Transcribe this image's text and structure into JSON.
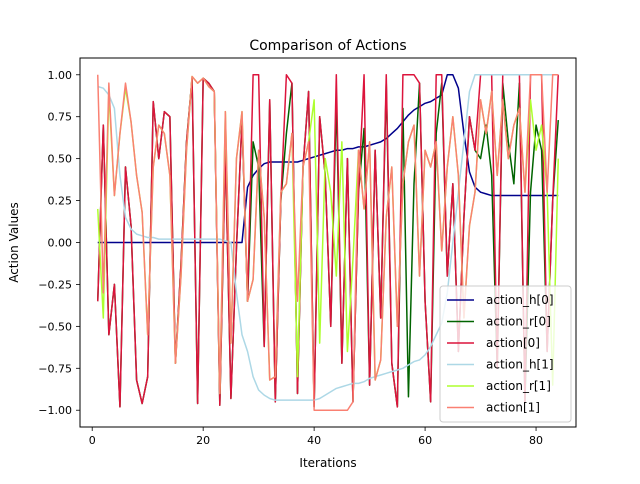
{
  "chart_data": {
    "type": "line",
    "title": "Comparison of Actions",
    "xlabel": "Iterations",
    "ylabel": "Action Values",
    "xlim": [
      -2.2,
      87.2
    ],
    "ylim": [
      -1.1,
      1.1
    ],
    "xticks": [
      0,
      20,
      40,
      60,
      80
    ],
    "xtick_labels": [
      "0",
      "20",
      "40",
      "60",
      "80"
    ],
    "yticks": [
      -1.0,
      -0.75,
      -0.5,
      -0.25,
      0.0,
      0.25,
      0.5,
      0.75,
      1.0
    ],
    "ytick_labels": [
      "−1.00",
      "−0.75",
      "−0.50",
      "−0.25",
      "0.00",
      "0.25",
      "0.50",
      "0.75",
      "1.00"
    ],
    "grid": false,
    "legend_position": "lower-right",
    "x": [
      1,
      2,
      3,
      4,
      5,
      6,
      7,
      8,
      9,
      10,
      11,
      12,
      13,
      14,
      15,
      16,
      17,
      18,
      19,
      20,
      21,
      22,
      23,
      24,
      25,
      26,
      27,
      28,
      29,
      30,
      31,
      32,
      33,
      34,
      35,
      36,
      37,
      38,
      39,
      40,
      41,
      42,
      43,
      44,
      45,
      46,
      47,
      48,
      49,
      50,
      51,
      52,
      53,
      54,
      55,
      56,
      57,
      58,
      59,
      60,
      61,
      62,
      63,
      64,
      65,
      66,
      67,
      68,
      69,
      70,
      71,
      72,
      73,
      74,
      75,
      76,
      77,
      78,
      79,
      80,
      81,
      82,
      83,
      84
    ],
    "series": [
      {
        "name": "action_h[0]",
        "color": "#00008b",
        "values": [
          0.0,
          0.0,
          0.0,
          0.0,
          0.0,
          0.0,
          0.0,
          0.0,
          0.0,
          0.0,
          0.0,
          0.0,
          0.0,
          0.0,
          0.0,
          0.0,
          0.0,
          0.0,
          0.0,
          0.0,
          0.0,
          0.0,
          0.0,
          0.0,
          0.0,
          0.0,
          0.0,
          0.33,
          0.4,
          0.44,
          0.47,
          0.48,
          0.48,
          0.48,
          0.48,
          0.48,
          0.48,
          0.49,
          0.5,
          0.51,
          0.52,
          0.53,
          0.54,
          0.55,
          0.55,
          0.56,
          0.56,
          0.57,
          0.57,
          0.58,
          0.59,
          0.6,
          0.62,
          0.65,
          0.68,
          0.72,
          0.76,
          0.79,
          0.81,
          0.83,
          0.84,
          0.86,
          0.88,
          1.0,
          1.0,
          0.92,
          0.65,
          0.42,
          0.33,
          0.3,
          0.29,
          0.28,
          0.28,
          0.28,
          0.28,
          0.28,
          0.28,
          0.28,
          0.28,
          0.28,
          0.28,
          0.28,
          0.28,
          0.28
        ]
      },
      {
        "name": "action_r[0]",
        "color": "#006400",
        "values": [
          -0.35,
          0.7,
          -0.55,
          -0.25,
          -0.98,
          0.45,
          0.1,
          -0.82,
          -0.96,
          -0.8,
          0.84,
          0.5,
          0.78,
          0.75,
          -0.72,
          -0.13,
          0.6,
          0.98,
          -0.96,
          0.98,
          0.95,
          0.9,
          -0.97,
          0.55,
          -0.93,
          -0.03,
          0.73,
          -0.35,
          0.6,
          0.45,
          -0.62,
          0.85,
          -0.95,
          0.25,
          0.65,
          0.95,
          -0.9,
          0.45,
          0.9,
          -0.98,
          0.75,
          0.4,
          -0.5,
          0.85,
          -0.72,
          0.5,
          -0.95,
          0.3,
          0.68,
          -0.85,
          0.55,
          -0.45,
          0.95,
          -0.72,
          -0.98,
          0.8,
          -0.92,
          0.35,
          0.95,
          -0.35,
          -0.95,
          0.65,
          0.95,
          -0.2,
          0.35,
          -0.65,
          0.15,
          0.75,
          0.55,
          0.5,
          0.7,
          0.4,
          -0.75,
          0.95,
          0.6,
          0.35,
          0.95,
          -0.95,
          0.3,
          0.7,
          0.55,
          -0.65,
          0.25,
          0.73
        ]
      },
      {
        "name": "action[0]",
        "color": "#dc143c",
        "values": [
          -0.35,
          0.7,
          -0.55,
          -0.25,
          -0.98,
          0.45,
          0.1,
          -0.82,
          -0.96,
          -0.8,
          0.84,
          0.5,
          0.78,
          0.75,
          -0.72,
          -0.13,
          0.6,
          0.98,
          -0.96,
          0.98,
          0.95,
          0.9,
          -0.97,
          0.55,
          -0.93,
          -0.03,
          0.73,
          -0.35,
          1.0,
          1.0,
          -0.62,
          0.85,
          -0.95,
          0.25,
          1.0,
          0.95,
          -0.9,
          0.45,
          0.9,
          -0.98,
          0.75,
          0.4,
          -0.5,
          1.0,
          -0.72,
          0.5,
          -0.95,
          0.3,
          1.0,
          -0.85,
          0.55,
          -0.45,
          1.0,
          -0.72,
          -0.98,
          1.0,
          1.0,
          1.0,
          0.95,
          -0.35,
          -0.95,
          1.0,
          1.0,
          -0.2,
          0.35,
          -0.65,
          0.15,
          0.75,
          0.55,
          1.0,
          1.0,
          1.0,
          -0.75,
          1.0,
          1.0,
          1.0,
          1.0,
          -0.95,
          1.0,
          1.0,
          1.0,
          -0.65,
          0.25,
          1.0
        ]
      },
      {
        "name": "action_h[1]",
        "color": "#add8e6",
        "values": [
          0.93,
          0.92,
          0.88,
          0.8,
          0.4,
          0.15,
          0.08,
          0.05,
          0.04,
          0.03,
          0.03,
          0.02,
          0.02,
          0.02,
          0.02,
          0.02,
          0.02,
          0.02,
          0.02,
          0.02,
          0.02,
          0.02,
          0.02,
          0.01,
          0.0,
          -0.3,
          -0.55,
          -0.65,
          -0.8,
          -0.88,
          -0.91,
          -0.93,
          -0.94,
          -0.94,
          -0.94,
          -0.94,
          -0.94,
          -0.94,
          -0.94,
          -0.94,
          -0.93,
          -0.91,
          -0.89,
          -0.87,
          -0.86,
          -0.85,
          -0.84,
          -0.84,
          -0.83,
          -0.81,
          -0.8,
          -0.79,
          -0.78,
          -0.77,
          -0.76,
          -0.75,
          -0.73,
          -0.71,
          -0.7,
          -0.67,
          -0.62,
          -0.55,
          -0.48,
          -0.3,
          0.0,
          0.3,
          0.6,
          0.9,
          1.0,
          1.0,
          1.0,
          1.0,
          1.0,
          1.0,
          1.0,
          1.0,
          1.0,
          1.0,
          1.0,
          1.0,
          1.0,
          1.0,
          1.0,
          1.0
        ]
      },
      {
        "name": "action_r[1]",
        "color": "#adff2f",
        "values": [
          0.2,
          -0.45,
          0.9,
          0.28,
          0.65,
          0.92,
          0.72,
          0.4,
          0.18,
          -0.55,
          0.45,
          0.7,
          0.65,
          0.4,
          -0.72,
          -0.2,
          0.55,
          0.99,
          0.95,
          0.98,
          0.93,
          0.9,
          -0.9,
          0.78,
          -0.6,
          0.5,
          0.78,
          -0.35,
          -0.22,
          0.55,
          0.15,
          -0.82,
          -0.8,
          0.3,
          0.35,
          0.65,
          -0.8,
          0.45,
          0.6,
          0.85,
          -0.6,
          0.5,
          0.3,
          -0.2,
          0.6,
          -0.65,
          -0.1,
          0.55,
          0.2,
          0.6,
          -0.82,
          -0.7,
          0.15,
          0.45,
          -0.5,
          0.35,
          0.6,
          0.7,
          -0.2,
          0.55,
          0.45,
          0.6,
          -0.05,
          0.45,
          0.75,
          0.4,
          -0.45,
          0.1,
          0.3,
          0.85,
          0.65,
          0.9,
          0.4,
          0.85,
          0.5,
          0.7,
          0.8,
          0.3,
          0.85,
          0.55,
          0.7,
          0.3,
          -0.85,
          0.5
        ]
      },
      {
        "name": "action[1]",
        "color": "#fa8072",
        "values": [
          1.0,
          -0.3,
          0.95,
          0.28,
          0.65,
          0.95,
          0.72,
          0.4,
          0.18,
          -0.55,
          0.45,
          0.7,
          0.65,
          0.4,
          -0.72,
          -0.2,
          0.55,
          0.99,
          0.95,
          0.98,
          0.93,
          0.9,
          -0.9,
          0.78,
          -0.6,
          0.5,
          0.78,
          -0.35,
          -0.22,
          0.55,
          0.15,
          -0.82,
          -0.8,
          0.3,
          0.35,
          0.65,
          -0.35,
          0.45,
          0.6,
          -1.0,
          -1.0,
          -1.0,
          -1.0,
          -1.0,
          -1.0,
          -1.0,
          -0.95,
          0.55,
          0.2,
          0.6,
          -0.82,
          -0.7,
          0.15,
          0.45,
          -0.5,
          0.35,
          0.6,
          0.7,
          -0.2,
          0.55,
          0.45,
          0.6,
          -0.05,
          0.45,
          0.75,
          0.4,
          -0.45,
          0.1,
          0.3,
          0.85,
          0.65,
          0.9,
          0.4,
          0.85,
          0.5,
          0.7,
          0.8,
          0.3,
          1.0,
          1.0,
          1.0,
          0.3,
          1.0,
          1.0
        ]
      }
    ]
  }
}
